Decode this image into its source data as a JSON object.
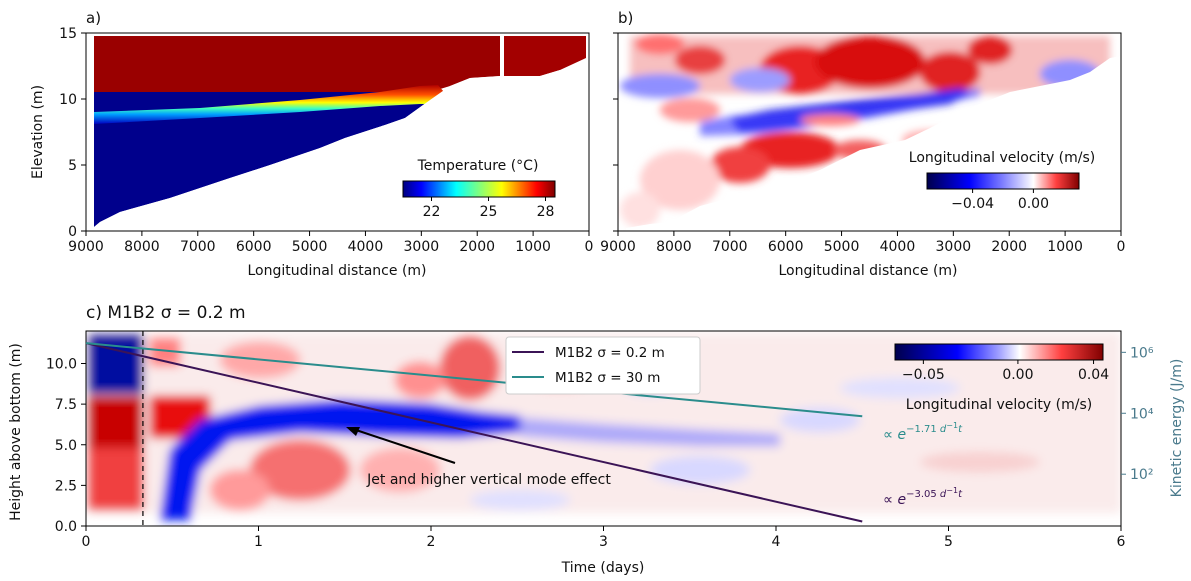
{
  "chart_data": [
    {
      "panel_label": "a)",
      "type": "heatmap",
      "xlabel": "Longitudinal distance (m)",
      "ylabel": "Elevation (m)",
      "xlim": [
        9000,
        0
      ],
      "ylim": [
        0,
        15
      ],
      "x_ticks": [
        "9000",
        "8000",
        "7000",
        "6000",
        "5000",
        "4000",
        "3000",
        "2000",
        "1000",
        "0"
      ],
      "y_ticks": [
        "0",
        "5",
        "10",
        "15"
      ],
      "colorbar": {
        "label": "Temperature (°C)",
        "colormap": "jet",
        "range": [
          20.5,
          28.5
        ],
        "ticks": [
          "22",
          "25",
          "28"
        ]
      },
      "thermocline": [
        {
          "x": 8800,
          "elevation": 8.4
        },
        {
          "x": 6000,
          "elevation": 9.0
        },
        {
          "x": 4000,
          "elevation": 9.7
        },
        {
          "x": 3000,
          "elevation": 10.5
        }
      ],
      "surface_temperature": 28,
      "bottom_temperature": 21
    },
    {
      "panel_label": "b)",
      "type": "heatmap",
      "xlabel": "Longitudinal distance (m)",
      "xlim": [
        9000,
        0
      ],
      "ylim": [
        0,
        15
      ],
      "x_ticks": [
        "9000",
        "8000",
        "7000",
        "6000",
        "5000",
        "4000",
        "3000",
        "2000",
        "1000",
        "0"
      ],
      "colorbar": {
        "label": "Longitudinal velocity (m/s)",
        "colormap": "seismic",
        "range": [
          -0.07,
          0.03
        ],
        "ticks": [
          "−0.04",
          "0.00"
        ]
      }
    },
    {
      "panel_label": "c)",
      "title": "M1B2 σ = 0.2 m",
      "type": "heatmap",
      "xlabel": "Time (days)",
      "ylabel": "Height above bottom (m)",
      "ylabel_right": "Kinetic energy (J/m)",
      "xlim": [
        0,
        6
      ],
      "ylim": [
        0,
        12
      ],
      "x_ticks": [
        "0",
        "1",
        "2",
        "3",
        "4",
        "5",
        "6"
      ],
      "y_ticks": [
        "0.0",
        "2.5",
        "5.0",
        "7.5",
        "10.0"
      ],
      "y_right_scale": "log",
      "y_right_ticks": [
        "10²",
        "10⁴",
        "10⁶"
      ],
      "colorbar": {
        "label": "Longitudinal velocity (m/s)",
        "colormap": "seismic",
        "range": [
          -0.065,
          0.045
        ],
        "ticks": [
          "−0.05",
          "0.00",
          "0.04"
        ]
      },
      "dashed_time": 0.33,
      "series": [
        {
          "name": "M1B2 σ = 0.2 m",
          "color": "#3b1456",
          "x": [
            0,
            4.5
          ],
          "kinetic_energy": [
            2000000,
            2.8
          ],
          "fit_label": "∝ e^−3.05 d⁻¹t"
        },
        {
          "name": "M1B2 σ = 30 m",
          "color": "#2a8c8c",
          "x": [
            0,
            4.5
          ],
          "kinetic_energy": [
            2000000,
            8000
          ],
          "fit_label": "∝ e^−1.71 d⁻¹t"
        }
      ],
      "annotation": {
        "text": "Jet and higher vertical mode effect",
        "arrow_to": {
          "time": 1.5,
          "height": 5.9
        }
      }
    }
  ]
}
